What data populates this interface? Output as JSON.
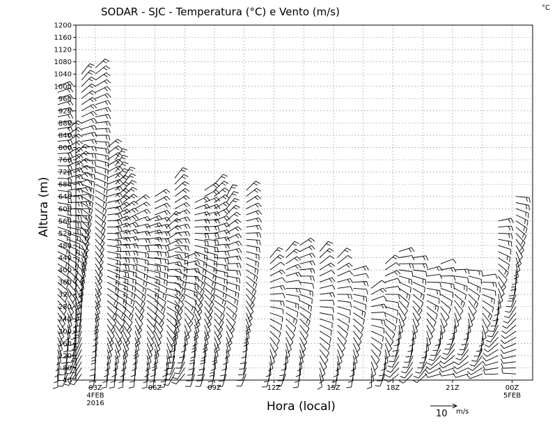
{
  "chart_data": {
    "type": "wind_barbs",
    "title": "SODAR - SJC - Temperatura (°C) e Vento (m/s)",
    "unit_corner": "°C",
    "xlabel": "Hora (local)",
    "ylabel": "Altura (m)",
    "ylim": [
      40,
      1200
    ],
    "yticks": [
      40,
      80,
      120,
      160,
      200,
      240,
      280,
      320,
      360,
      400,
      440,
      480,
      520,
      560,
      600,
      640,
      680,
      720,
      760,
      800,
      840,
      880,
      920,
      960,
      1000,
      1040,
      1080,
      1120,
      1160,
      1200
    ],
    "xlim_hours": [
      0,
      24
    ],
    "xticks": [
      {
        "hour": 2,
        "label": "03Z",
        "sub1": "4FEB",
        "sub2": "2016"
      },
      {
        "hour": 5,
        "label": "06Z",
        "sub1": "",
        "sub2": ""
      },
      {
        "hour": 8,
        "label": "09Z",
        "sub1": "",
        "sub2": ""
      },
      {
        "hour": 11,
        "label": "12Z",
        "sub1": "",
        "sub2": ""
      },
      {
        "hour": 14,
        "label": "15Z",
        "sub1": "",
        "sub2": ""
      },
      {
        "hour": 17,
        "label": "18Z",
        "sub1": "",
        "sub2": ""
      },
      {
        "hour": 20,
        "label": "21Z",
        "sub1": "",
        "sub2": ""
      },
      {
        "hour": 23,
        "label": "00Z",
        "sub1": "5FEB",
        "sub2": ""
      }
    ],
    "reference_vector": {
      "value": 10,
      "unit": "m/s"
    },
    "level_step_m": 20,
    "min_height_m": 60,
    "profiles": [
      {
        "hour": 0.1,
        "top": 1000,
        "dir_low": 180,
        "dir_high": 60,
        "spd_low": 3,
        "spd_high": 7
      },
      {
        "hour": 0.6,
        "top": 860,
        "dir_low": 190,
        "dir_high": 60,
        "spd_low": 3,
        "spd_high": 7
      },
      {
        "hour": 1.0,
        "top": 780,
        "dir_low": 200,
        "dir_high": 55,
        "spd_low": 3,
        "spd_high": 6
      },
      {
        "hour": 1.3,
        "top": 1040,
        "dir_low": 210,
        "dir_high": 50,
        "spd_low": 4,
        "spd_high": 8
      },
      {
        "hour": 2.0,
        "top": 1060,
        "dir_low": 200,
        "dir_high": 45,
        "spd_low": 4,
        "spd_high": 9
      },
      {
        "hour": 2.6,
        "top": 800,
        "dir_low": 190,
        "dir_high": 45,
        "spd_low": 4,
        "spd_high": 8
      },
      {
        "hour": 3.0,
        "top": 760,
        "dir_low": 180,
        "dir_high": 40,
        "spd_low": 4,
        "spd_high": 8
      },
      {
        "hour": 3.4,
        "top": 700,
        "dir_low": 170,
        "dir_high": 45,
        "spd_low": 4,
        "spd_high": 7
      },
      {
        "hour": 4.0,
        "top": 620,
        "dir_low": 180,
        "dir_high": 50,
        "spd_low": 4,
        "spd_high": 7
      },
      {
        "hour": 4.6,
        "top": 560,
        "dir_low": 190,
        "dir_high": 55,
        "spd_low": 3,
        "spd_high": 6
      },
      {
        "hour": 5.0,
        "top": 640,
        "dir_low": 200,
        "dir_high": 50,
        "spd_low": 4,
        "spd_high": 7
      },
      {
        "hour": 5.6,
        "top": 560,
        "dir_low": 190,
        "dir_high": 55,
        "spd_low": 3,
        "spd_high": 6
      },
      {
        "hour": 6.0,
        "top": 700,
        "dir_low": 200,
        "dir_high": 50,
        "spd_low": 4,
        "spd_high": 7
      },
      {
        "hour": 6.5,
        "top": 440,
        "dir_low": 210,
        "dir_high": 60,
        "spd_low": 3,
        "spd_high": 6
      },
      {
        "hour": 7.0,
        "top": 620,
        "dir_low": 200,
        "dir_high": 55,
        "spd_low": 4,
        "spd_high": 7
      },
      {
        "hour": 7.5,
        "top": 660,
        "dir_low": 210,
        "dir_high": 45,
        "spd_low": 4,
        "spd_high": 8
      },
      {
        "hour": 8.0,
        "top": 680,
        "dir_low": 200,
        "dir_high": 40,
        "spd_low": 4,
        "spd_high": 8
      },
      {
        "hour": 8.6,
        "top": 640,
        "dir_low": 190,
        "dir_high": 40,
        "spd_low": 4,
        "spd_high": 8
      },
      {
        "hour": 9.6,
        "top": 660,
        "dir_low": 200,
        "dir_high": 40,
        "spd_low": 4,
        "spd_high": 7
      },
      {
        "hour": 10.8,
        "top": 440,
        "dir_low": 200,
        "dir_high": 50,
        "spd_low": 3,
        "spd_high": 6
      },
      {
        "hour": 11.6,
        "top": 460,
        "dir_low": 190,
        "dir_high": 45,
        "spd_low": 3,
        "spd_high": 6
      },
      {
        "hour": 12.3,
        "top": 480,
        "dir_low": 185,
        "dir_high": 45,
        "spd_low": 3,
        "spd_high": 6
      },
      {
        "hour": 13.3,
        "top": 460,
        "dir_low": 180,
        "dir_high": 45,
        "spd_low": 3,
        "spd_high": 6
      },
      {
        "hour": 14.2,
        "top": 440,
        "dir_low": 180,
        "dir_high": 50,
        "spd_low": 3,
        "spd_high": 5
      },
      {
        "hour": 15.0,
        "top": 400,
        "dir_low": 185,
        "dir_high": 60,
        "spd_low": 3,
        "spd_high": 5
      },
      {
        "hour": 15.9,
        "top": 340,
        "dir_low": 190,
        "dir_high": 60,
        "spd_low": 3,
        "spd_high": 5
      },
      {
        "hour": 16.6,
        "top": 420,
        "dir_low": 200,
        "dir_high": 60,
        "spd_low": 3,
        "spd_high": 5
      },
      {
        "hour": 17.3,
        "top": 460,
        "dir_low": 220,
        "dir_high": 70,
        "spd_low": 3,
        "spd_high": 5
      },
      {
        "hour": 18.0,
        "top": 440,
        "dir_low": 230,
        "dir_high": 70,
        "spd_low": 3,
        "spd_high": 5
      },
      {
        "hour": 18.7,
        "top": 400,
        "dir_low": 240,
        "dir_high": 80,
        "spd_low": 3,
        "spd_high": 5
      },
      {
        "hour": 19.4,
        "top": 420,
        "dir_low": 250,
        "dir_high": 80,
        "spd_low": 3,
        "spd_high": 5
      },
      {
        "hour": 20.1,
        "top": 400,
        "dir_low": 250,
        "dir_high": 80,
        "spd_low": 3,
        "spd_high": 5
      },
      {
        "hour": 20.8,
        "top": 400,
        "dir_low": 260,
        "dir_high": 85,
        "spd_low": 3,
        "spd_high": 5
      },
      {
        "hour": 21.5,
        "top": 380,
        "dir_low": 260,
        "dir_high": 90,
        "spd_low": 3,
        "spd_high": 5
      },
      {
        "hour": 22.3,
        "top": 560,
        "dir_low": 260,
        "dir_high": 90,
        "spd_low": 3,
        "spd_high": 6
      },
      {
        "hour": 23.2,
        "top": 640,
        "dir_low": 270,
        "dir_high": 90,
        "spd_low": 3,
        "spd_high": 6
      }
    ]
  }
}
